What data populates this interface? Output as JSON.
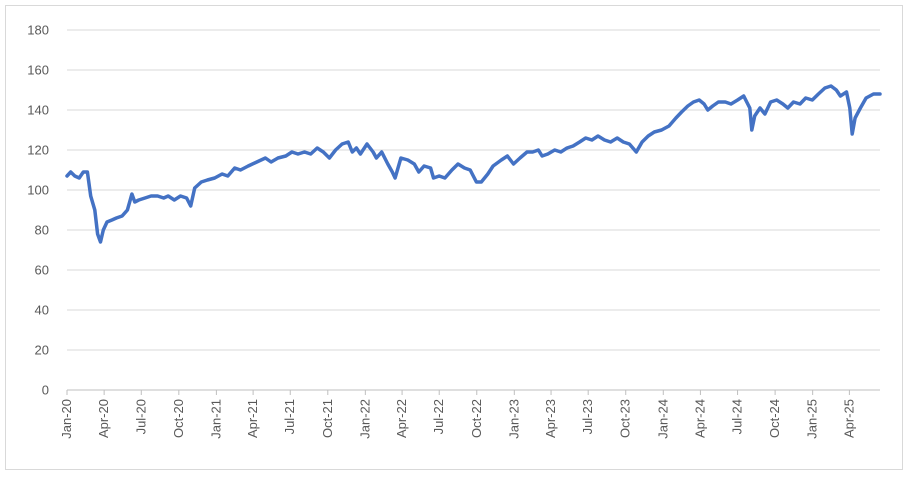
{
  "chart_data": {
    "type": "line",
    "title": "",
    "xlabel": "",
    "ylabel": "",
    "ylim": [
      0,
      180
    ],
    "yticks": [
      0,
      20,
      40,
      60,
      80,
      100,
      120,
      140,
      160,
      180
    ],
    "xlim": [
      "2020-01-01",
      "2025-06-15"
    ],
    "xticks": [
      {
        "date": "2020-01-01",
        "label": "Jan-20"
      },
      {
        "date": "2020-04-01",
        "label": "Apr-20"
      },
      {
        "date": "2020-07-01",
        "label": "Jul-20"
      },
      {
        "date": "2020-10-01",
        "label": "Oct-20"
      },
      {
        "date": "2021-01-01",
        "label": "Jan-21"
      },
      {
        "date": "2021-04-01",
        "label": "Apr-21"
      },
      {
        "date": "2021-07-01",
        "label": "Jul-21"
      },
      {
        "date": "2021-10-01",
        "label": "Oct-21"
      },
      {
        "date": "2022-01-01",
        "label": "Jan-22"
      },
      {
        "date": "2022-04-01",
        "label": "Apr-22"
      },
      {
        "date": "2022-07-01",
        "label": "Jul-22"
      },
      {
        "date": "2022-10-01",
        "label": "Oct-22"
      },
      {
        "date": "2023-01-01",
        "label": "Jan-23"
      },
      {
        "date": "2023-04-01",
        "label": "Apr-23"
      },
      {
        "date": "2023-07-01",
        "label": "Jul-23"
      },
      {
        "date": "2023-10-01",
        "label": "Oct-23"
      },
      {
        "date": "2024-01-01",
        "label": "Jan-24"
      },
      {
        "date": "2024-04-01",
        "label": "Apr-24"
      },
      {
        "date": "2024-07-01",
        "label": "Jul-24"
      },
      {
        "date": "2024-10-01",
        "label": "Oct-24"
      },
      {
        "date": "2025-01-01",
        "label": "Jan-25"
      },
      {
        "date": "2025-04-01",
        "label": "Apr-25"
      }
    ],
    "grid": true,
    "legend": "none",
    "series": [
      {
        "color": "#4472c4",
        "points": [
          [
            "2020-01-01",
            107
          ],
          [
            "2020-01-10",
            109
          ],
          [
            "2020-01-20",
            107
          ],
          [
            "2020-01-31",
            106
          ],
          [
            "2020-02-10",
            109
          ],
          [
            "2020-02-20",
            109
          ],
          [
            "2020-02-28",
            97
          ],
          [
            "2020-03-09",
            90
          ],
          [
            "2020-03-16",
            78
          ],
          [
            "2020-03-23",
            74
          ],
          [
            "2020-03-30",
            80
          ],
          [
            "2020-04-08",
            84
          ],
          [
            "2020-04-20",
            85
          ],
          [
            "2020-05-01",
            86
          ],
          [
            "2020-05-15",
            87
          ],
          [
            "2020-05-28",
            90
          ],
          [
            "2020-06-08",
            98
          ],
          [
            "2020-06-15",
            94
          ],
          [
            "2020-06-25",
            95
          ],
          [
            "2020-07-10",
            96
          ],
          [
            "2020-07-25",
            97
          ],
          [
            "2020-08-10",
            97
          ],
          [
            "2020-08-25",
            96
          ],
          [
            "2020-09-05",
            97
          ],
          [
            "2020-09-20",
            95
          ],
          [
            "2020-10-05",
            97
          ],
          [
            "2020-10-20",
            96
          ],
          [
            "2020-10-30",
            92
          ],
          [
            "2020-11-09",
            101
          ],
          [
            "2020-11-25",
            104
          ],
          [
            "2020-12-10",
            105
          ],
          [
            "2020-12-28",
            106
          ],
          [
            "2021-01-15",
            108
          ],
          [
            "2021-01-29",
            107
          ],
          [
            "2021-02-15",
            111
          ],
          [
            "2021-03-01",
            110
          ],
          [
            "2021-03-20",
            112
          ],
          [
            "2021-04-10",
            114
          ],
          [
            "2021-05-01",
            116
          ],
          [
            "2021-05-15",
            114
          ],
          [
            "2021-06-01",
            116
          ],
          [
            "2021-06-20",
            117
          ],
          [
            "2021-07-05",
            119
          ],
          [
            "2021-07-20",
            118
          ],
          [
            "2021-08-05",
            119
          ],
          [
            "2021-08-20",
            118
          ],
          [
            "2021-09-05",
            121
          ],
          [
            "2021-09-20",
            119
          ],
          [
            "2021-10-05",
            116
          ],
          [
            "2021-10-20",
            120
          ],
          [
            "2021-11-05",
            123
          ],
          [
            "2021-11-20",
            124
          ],
          [
            "2021-11-30",
            119
          ],
          [
            "2021-12-10",
            121
          ],
          [
            "2021-12-20",
            118
          ],
          [
            "2022-01-05",
            123
          ],
          [
            "2022-01-20",
            119
          ],
          [
            "2022-01-28",
            116
          ],
          [
            "2022-02-10",
            119
          ],
          [
            "2022-02-25",
            113
          ],
          [
            "2022-03-08",
            109
          ],
          [
            "2022-03-15",
            106
          ],
          [
            "2022-03-29",
            116
          ],
          [
            "2022-04-15",
            115
          ],
          [
            "2022-05-01",
            113
          ],
          [
            "2022-05-12",
            109
          ],
          [
            "2022-05-25",
            112
          ],
          [
            "2022-06-10",
            111
          ],
          [
            "2022-06-17",
            106
          ],
          [
            "2022-07-01",
            107
          ],
          [
            "2022-07-15",
            106
          ],
          [
            "2022-08-01",
            110
          ],
          [
            "2022-08-16",
            113
          ],
          [
            "2022-09-01",
            111
          ],
          [
            "2022-09-15",
            110
          ],
          [
            "2022-09-30",
            104
          ],
          [
            "2022-10-12",
            104
          ],
          [
            "2022-10-28",
            108
          ],
          [
            "2022-11-10",
            112
          ],
          [
            "2022-11-30",
            115
          ],
          [
            "2022-12-15",
            117
          ],
          [
            "2022-12-30",
            113
          ],
          [
            "2023-01-15",
            116
          ],
          [
            "2023-02-01",
            119
          ],
          [
            "2023-02-15",
            119
          ],
          [
            "2023-03-01",
            120
          ],
          [
            "2023-03-10",
            117
          ],
          [
            "2023-03-24",
            118
          ],
          [
            "2023-04-10",
            120
          ],
          [
            "2023-04-25",
            119
          ],
          [
            "2023-05-10",
            121
          ],
          [
            "2023-05-25",
            122
          ],
          [
            "2023-06-10",
            124
          ],
          [
            "2023-06-25",
            126
          ],
          [
            "2023-07-10",
            125
          ],
          [
            "2023-07-25",
            127
          ],
          [
            "2023-08-10",
            125
          ],
          [
            "2023-08-25",
            124
          ],
          [
            "2023-09-10",
            126
          ],
          [
            "2023-09-25",
            124
          ],
          [
            "2023-10-10",
            123
          ],
          [
            "2023-10-27",
            119
          ],
          [
            "2023-11-10",
            124
          ],
          [
            "2023-11-25",
            127
          ],
          [
            "2023-12-10",
            129
          ],
          [
            "2023-12-28",
            130
          ],
          [
            "2024-01-15",
            132
          ],
          [
            "2024-02-01",
            136
          ],
          [
            "2024-02-15",
            139
          ],
          [
            "2024-03-01",
            142
          ],
          [
            "2024-03-15",
            144
          ],
          [
            "2024-03-29",
            145
          ],
          [
            "2024-04-10",
            143
          ],
          [
            "2024-04-19",
            140
          ],
          [
            "2024-05-01",
            142
          ],
          [
            "2024-05-15",
            144
          ],
          [
            "2024-06-01",
            144
          ],
          [
            "2024-06-15",
            143
          ],
          [
            "2024-07-01",
            145
          ],
          [
            "2024-07-16",
            147
          ],
          [
            "2024-07-31",
            141
          ],
          [
            "2024-08-05",
            130
          ],
          [
            "2024-08-12",
            137
          ],
          [
            "2024-08-25",
            141
          ],
          [
            "2024-09-06",
            138
          ],
          [
            "2024-09-20",
            144
          ],
          [
            "2024-10-05",
            145
          ],
          [
            "2024-10-20",
            143
          ],
          [
            "2024-11-01",
            141
          ],
          [
            "2024-11-15",
            144
          ],
          [
            "2024-12-01",
            143
          ],
          [
            "2024-12-15",
            146
          ],
          [
            "2024-12-31",
            145
          ],
          [
            "2025-01-15",
            148
          ],
          [
            "2025-01-31",
            151
          ],
          [
            "2025-02-15",
            152
          ],
          [
            "2025-02-28",
            150
          ],
          [
            "2025-03-10",
            147
          ],
          [
            "2025-03-25",
            149
          ],
          [
            "2025-04-02",
            141
          ],
          [
            "2025-04-08",
            128
          ],
          [
            "2025-04-15",
            136
          ],
          [
            "2025-04-28",
            141
          ],
          [
            "2025-05-12",
            146
          ],
          [
            "2025-05-30",
            148
          ],
          [
            "2025-06-15",
            148
          ]
        ]
      }
    ]
  }
}
